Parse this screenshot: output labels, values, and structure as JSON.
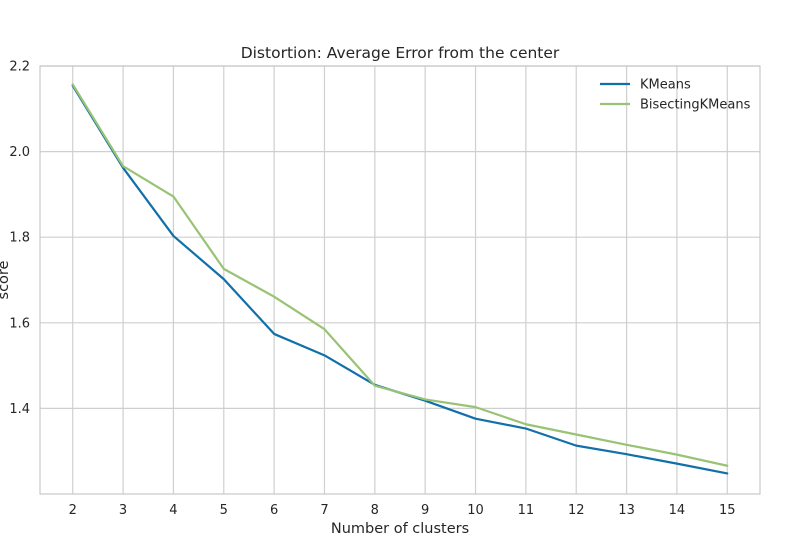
{
  "chart_data": {
    "type": "line",
    "title": "Distortion: Average Error from the center",
    "xlabel": "Number of clusters",
    "ylabel": "score",
    "x": [
      2,
      3,
      4,
      5,
      6,
      7,
      8,
      9,
      10,
      11,
      12,
      13,
      14,
      15
    ],
    "xlim": [
      1.35,
      15.65
    ],
    "ylim": [
      1.2,
      2.2
    ],
    "yticks": [
      1.4,
      1.6,
      1.8,
      2.0,
      2.2
    ],
    "ytick_labels": [
      "1.4",
      "1.6",
      "1.8",
      "2.0",
      "2.2"
    ],
    "xtick_labels": [
      "2",
      "3",
      "4",
      "5",
      "6",
      "7",
      "8",
      "9",
      "10",
      "11",
      "12",
      "13",
      "14",
      "15"
    ],
    "grid": true,
    "legend_position": "top-right",
    "series": [
      {
        "name": "KMeans",
        "color": "#1170aa",
        "values": [
          2.154,
          1.962,
          1.803,
          1.702,
          1.574,
          1.524,
          1.455,
          1.418,
          1.376,
          1.353,
          1.313,
          1.293,
          1.271,
          1.248
        ]
      },
      {
        "name": "BisectingKMeans",
        "color": "#99c374",
        "values": [
          2.157,
          1.966,
          1.895,
          1.726,
          1.661,
          1.585,
          1.453,
          1.421,
          1.403,
          1.363,
          1.339,
          1.315,
          1.292,
          1.266
        ]
      }
    ]
  }
}
